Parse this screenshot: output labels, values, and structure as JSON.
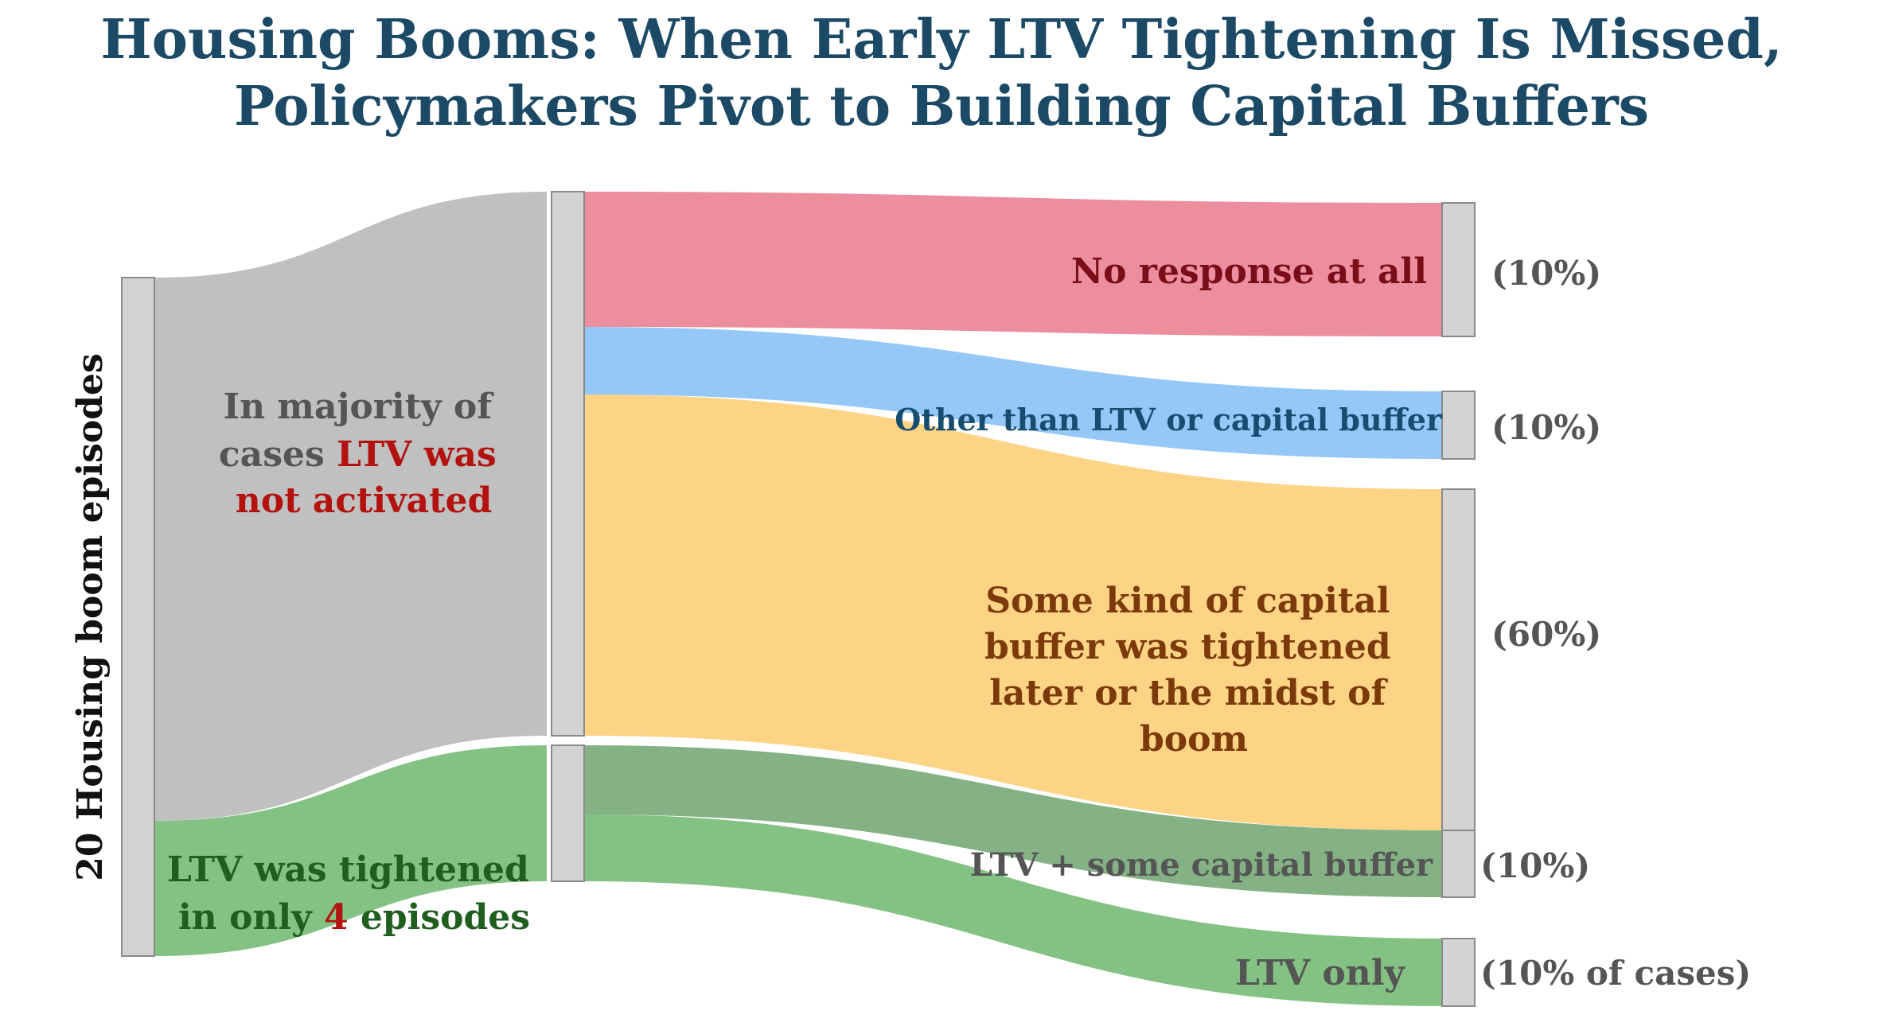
{
  "title": {
    "line1": "Housing Booms: When Early LTV Tightening Is Missed,",
    "line2": "Policymakers Pivot to Building Capital Buffers"
  },
  "source_label": "20 Housing boom episodes",
  "colors": {
    "node": "#d3d3d3",
    "not_activated": "#bdbdbd",
    "tightened": "#7dbf7d",
    "no_response": "#eb8899",
    "other": "#8fc4f7",
    "capital": "#fdd17f",
    "ltv_plus": "#7eae7e",
    "ltv_only": "#7dbf7d",
    "title": "#1c4a66",
    "red": "#b3120f"
  },
  "chart_data": {
    "type": "sankey",
    "nodes": [
      "20 Housing boom episodes",
      "LTV not activated",
      "LTV tightened",
      "No response at all",
      "Other than LTV or capital buffer",
      "Some kind of capital buffer was tightened later or the midst of boom",
      "LTV + some capital buffer",
      "LTV only"
    ],
    "links": [
      {
        "source": "20 Housing boom episodes",
        "target": "LTV not activated",
        "value": 16
      },
      {
        "source": "20 Housing boom episodes",
        "target": "LTV tightened",
        "value": 4
      },
      {
        "source": "LTV not activated",
        "target": "No response at all",
        "value": 2
      },
      {
        "source": "LTV not activated",
        "target": "Other than LTV or capital buffer",
        "value": 2
      },
      {
        "source": "LTV not activated",
        "target": "Some kind of capital buffer was tightened later or the midst of boom",
        "value": 12
      },
      {
        "source": "LTV tightened",
        "target": "LTV + some capital buffer",
        "value": 2
      },
      {
        "source": "LTV tightened",
        "target": "LTV only",
        "value": 2
      }
    ]
  },
  "labels": {
    "not_activated": {
      "part1": "In majority of",
      "part2": "cases ",
      "part2_red": "LTV was",
      "part3_red": "not activated"
    },
    "tightened": {
      "part1": "LTV was tightened",
      "part2": "in only ",
      "part2_red": "4",
      "part2_rest": " episodes"
    },
    "no_response": "No response at all",
    "other": "Other than LTV or capital buffer",
    "capital": [
      "Some kind of capital",
      "buffer was tightened",
      "later or the midst of",
      "boom"
    ],
    "ltv_plus": "LTV + some capital buffer",
    "ltv_only": "LTV only"
  },
  "percents": {
    "no_response": "(10%)",
    "other": "(10%)",
    "capital": "(60%)",
    "ltv_plus": "(10%)",
    "ltv_only": "(10% of cases)"
  }
}
